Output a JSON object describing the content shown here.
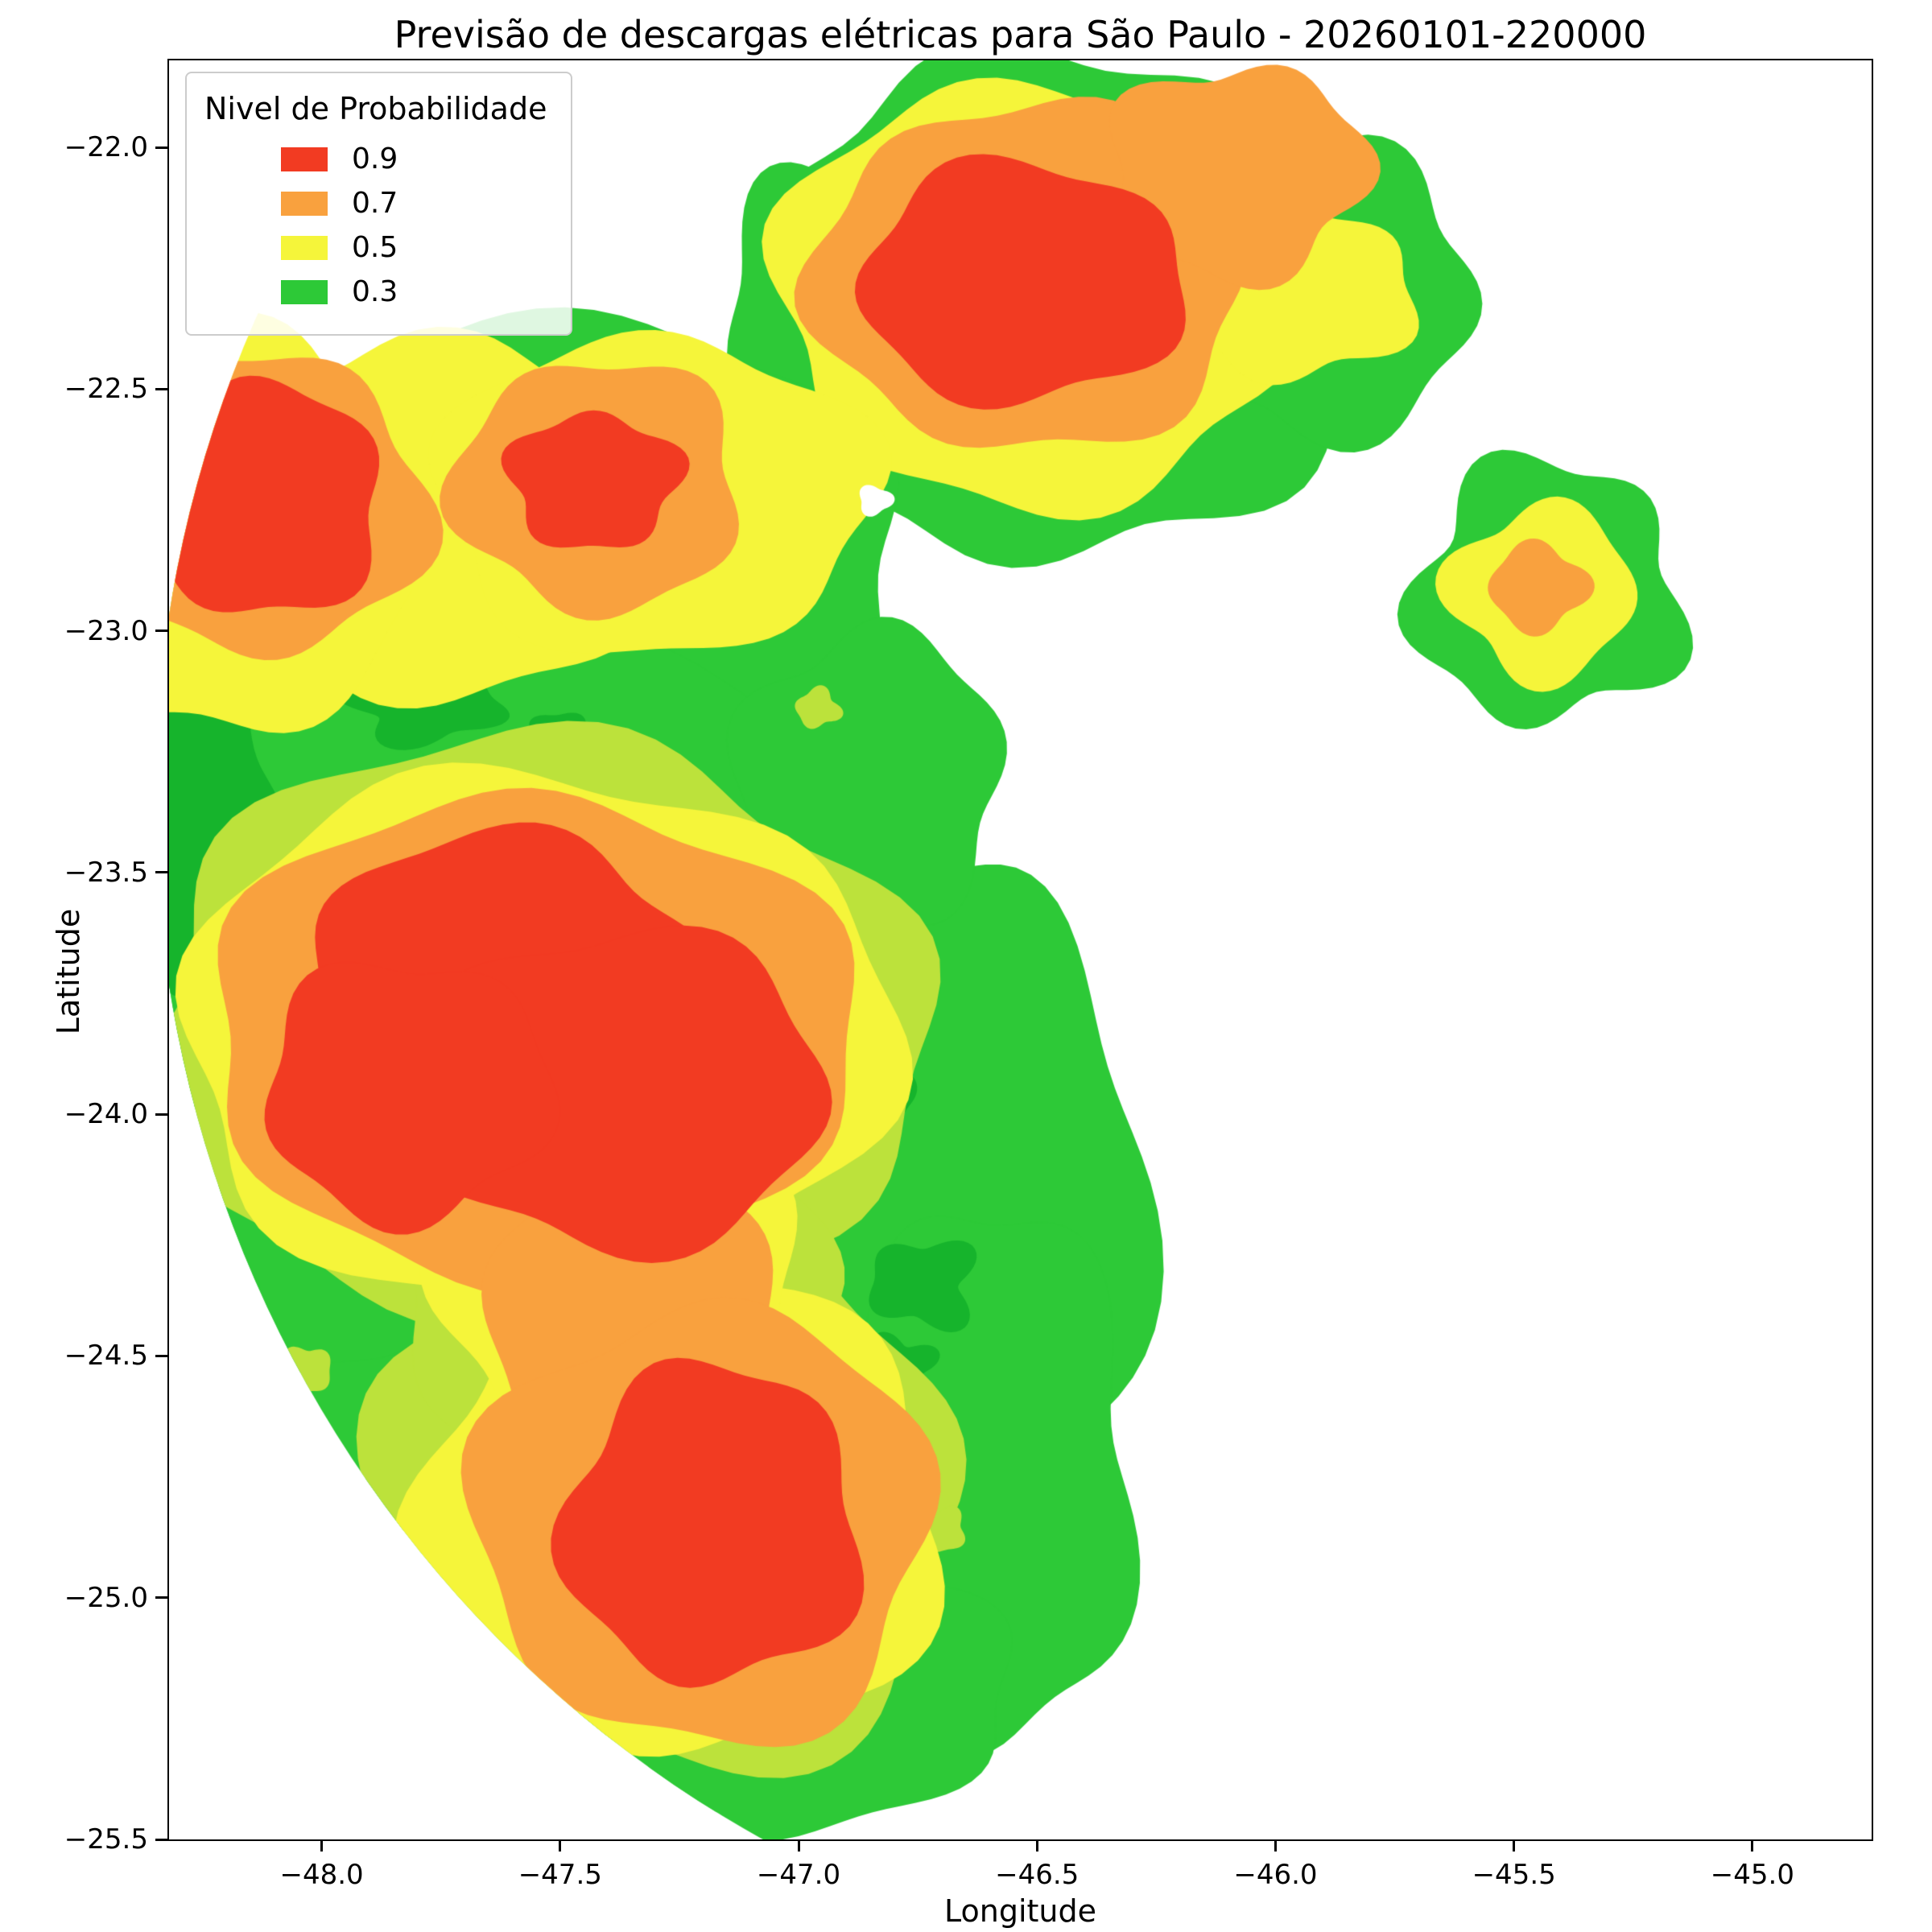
{
  "figure": {
    "title": "Previsão de descargas elétricas para São Paulo - 20260101-220000",
    "xlabel": "Longitude",
    "ylabel": "Latitude",
    "background": "#ffffff"
  },
  "legend": {
    "title": "Nivel de Probabilidade",
    "entries": [
      {
        "label": "0.9",
        "color": "#f23b22"
      },
      {
        "label": "0.7",
        "color": "#f9a13e"
      },
      {
        "label": "0.5",
        "color": "#f5f53a"
      },
      {
        "label": "0.3",
        "color": "#2dc937"
      }
    ]
  },
  "chart_data": {
    "type": "heatmap",
    "subtype": "filled-contour-probability-map",
    "title": "Previsão de descargas elétricas para São Paulo - 20260101-220000",
    "xlabel": "Longitude",
    "ylabel": "Latitude",
    "xlim": [
      -48.32,
      -44.75
    ],
    "ylim": [
      -25.5,
      -21.82
    ],
    "xticks": [
      -48.0,
      -47.5,
      -47.0,
      -46.5,
      -46.0,
      -45.5,
      -45.0
    ],
    "xtick_labels": [
      "−48.0",
      "−47.5",
      "−47.0",
      "−46.5",
      "−46.0",
      "−45.5",
      "−45.0"
    ],
    "yticks": [
      -22.0,
      -22.5,
      -23.0,
      -23.5,
      -24.0,
      -24.5,
      -25.0,
      -25.5
    ],
    "ytick_labels": [
      "−22.0",
      "−22.5",
      "−23.0",
      "−23.5",
      "−24.0",
      "−24.5",
      "−25.0",
      "−25.5"
    ],
    "grid": false,
    "legend_position": "upper left",
    "coverage_circle": {
      "cx": -45.9,
      "cy": -23.35,
      "r": 2.45
    },
    "levels": [
      {
        "label": "0.3",
        "value": 0.3,
        "color": "#2dc937",
        "blobs": [
          {
            "cx": -46.45,
            "cy": -22.33,
            "rx": 0.66,
            "ry": 0.52,
            "seed": 1,
            "wobble": 0.06,
            "freq": 7
          },
          {
            "cx": -45.92,
            "cy": -22.3,
            "rx": 0.34,
            "ry": 0.3,
            "seed": 2,
            "wobble": 0.1,
            "freq": 5
          },
          {
            "cx": -46.9,
            "cy": -22.35,
            "rx": 0.25,
            "ry": 0.33,
            "seed": 3,
            "wobble": 0.1,
            "freq": 5
          },
          {
            "cx": -45.43,
            "cy": -22.92,
            "rx": 0.28,
            "ry": 0.27,
            "seed": 4,
            "wobble": 0.12,
            "freq": 5
          },
          {
            "cx": -47.55,
            "cy": -22.85,
            "rx": 0.78,
            "ry": 0.5,
            "seed": 5,
            "wobble": 0.05,
            "freq": 6
          },
          {
            "cx": -47.6,
            "cy": -23.6,
            "rx": 0.92,
            "ry": 0.6,
            "seed": 6,
            "wobble": 0.05,
            "freq": 6
          },
          {
            "cx": -47.45,
            "cy": -24.3,
            "rx": 0.85,
            "ry": 0.6,
            "seed": 7,
            "wobble": 0.06,
            "freq": 6
          },
          {
            "cx": -47.25,
            "cy": -24.95,
            "rx": 0.72,
            "ry": 0.5,
            "seed": 8,
            "wobble": 0.07,
            "freq": 6
          },
          {
            "cx": -46.7,
            "cy": -24.2,
            "rx": 0.42,
            "ry": 0.75,
            "seed": 9,
            "wobble": 0.08,
            "freq": 5
          },
          {
            "cx": -46.62,
            "cy": -24.75,
            "rx": 0.33,
            "ry": 0.55,
            "seed": 10,
            "wobble": 0.09,
            "freq": 5
          },
          {
            "cx": -47.0,
            "cy": -25.2,
            "rx": 0.45,
            "ry": 0.28,
            "seed": 11,
            "wobble": 0.08,
            "freq": 5
          },
          {
            "cx": -48.05,
            "cy": -23.8,
            "rx": 0.4,
            "ry": 0.8,
            "seed": 12,
            "wobble": 0.06,
            "freq": 5
          },
          {
            "cx": -46.85,
            "cy": -23.3,
            "rx": 0.28,
            "ry": 0.3,
            "seed": 13,
            "wobble": 0.09,
            "freq": 5
          }
        ]
      },
      {
        "label": "",
        "color": "#16b42c",
        "blobs": [
          {
            "cx": -48.28,
            "cy": -23.4,
            "rx": 0.2,
            "ry": 0.33,
            "seed": 21,
            "wobble": 0.15,
            "freq": 4
          },
          {
            "cx": -47.78,
            "cy": -23.16,
            "rx": 0.16,
            "ry": 0.07,
            "seed": 22,
            "wobble": 0.2,
            "freq": 4
          },
          {
            "cx": -47.5,
            "cy": -23.22,
            "rx": 0.07,
            "ry": 0.05,
            "seed": 23,
            "wobble": 0.2,
            "freq": 4
          },
          {
            "cx": -46.74,
            "cy": -24.35,
            "rx": 0.11,
            "ry": 0.09,
            "seed": 24,
            "wobble": 0.2,
            "freq": 4
          },
          {
            "cx": -46.79,
            "cy": -24.52,
            "rx": 0.07,
            "ry": 0.06,
            "seed": 25,
            "wobble": 0.2,
            "freq": 4
          },
          {
            "cx": -46.82,
            "cy": -23.95,
            "rx": 0.06,
            "ry": 0.08,
            "seed": 26,
            "wobble": 0.2,
            "freq": 4
          }
        ]
      },
      {
        "label": "",
        "color": "#bce23b",
        "blobs": [
          {
            "cx": -47.55,
            "cy": -23.82,
            "rx": 0.82,
            "ry": 0.6,
            "seed": 31,
            "wobble": 0.06,
            "freq": 6
          },
          {
            "cx": -47.28,
            "cy": -24.8,
            "rx": 0.62,
            "ry": 0.56,
            "seed": 32,
            "wobble": 0.08,
            "freq": 5
          },
          {
            "cx": -47.4,
            "cy": -24.35,
            "rx": 0.45,
            "ry": 0.4,
            "seed": 33,
            "wobble": 0.08,
            "freq": 5
          },
          {
            "cx": -46.96,
            "cy": -23.16,
            "rx": 0.045,
            "ry": 0.04,
            "seed": 34,
            "wobble": 0.15,
            "freq": 4
          },
          {
            "cx": -46.7,
            "cy": -24.86,
            "rx": 0.05,
            "ry": 0.045,
            "seed": 35,
            "wobble": 0.15,
            "freq": 4
          },
          {
            "cx": -48.03,
            "cy": -24.53,
            "rx": 0.05,
            "ry": 0.05,
            "seed": 36,
            "wobble": 0.15,
            "freq": 4
          }
        ]
      },
      {
        "label": "0.5",
        "value": 0.5,
        "color": "#f5f53a",
        "blobs": [
          {
            "cx": -46.5,
            "cy": -22.3,
            "rx": 0.55,
            "ry": 0.44,
            "seed": 41,
            "wobble": 0.06,
            "freq": 6
          },
          {
            "cx": -45.95,
            "cy": -22.3,
            "rx": 0.24,
            "ry": 0.18,
            "seed": 42,
            "wobble": 0.1,
            "freq": 5
          },
          {
            "cx": -47.8,
            "cy": -22.77,
            "rx": 0.52,
            "ry": 0.37,
            "seed": 43,
            "wobble": 0.07,
            "freq": 6
          },
          {
            "cx": -47.3,
            "cy": -22.72,
            "rx": 0.46,
            "ry": 0.33,
            "seed": 44,
            "wobble": 0.07,
            "freq": 5
          },
          {
            "cx": -48.2,
            "cy": -22.8,
            "rx": 0.4,
            "ry": 0.42,
            "seed": 45,
            "wobble": 0.07,
            "freq": 5
          },
          {
            "cx": -45.44,
            "cy": -22.92,
            "rx": 0.19,
            "ry": 0.18,
            "seed": 46,
            "wobble": 0.12,
            "freq": 4
          },
          {
            "cx": -47.55,
            "cy": -23.84,
            "rx": 0.75,
            "ry": 0.55,
            "seed": 47,
            "wobble": 0.05,
            "freq": 6
          },
          {
            "cx": -47.25,
            "cy": -24.82,
            "rx": 0.55,
            "ry": 0.5,
            "seed": 48,
            "wobble": 0.07,
            "freq": 5
          },
          {
            "cx": -47.38,
            "cy": -24.35,
            "rx": 0.38,
            "ry": 0.36,
            "seed": 49,
            "wobble": 0.07,
            "freq": 5
          }
        ]
      },
      {
        "label": "0.7",
        "value": 0.7,
        "color": "#f9a13e",
        "blobs": [
          {
            "cx": -46.52,
            "cy": -22.27,
            "rx": 0.45,
            "ry": 0.36,
            "seed": 51,
            "wobble": 0.06,
            "freq": 6
          },
          {
            "cx": -46.08,
            "cy": -22.05,
            "rx": 0.27,
            "ry": 0.22,
            "seed": 52,
            "wobble": 0.1,
            "freq": 5
          },
          {
            "cx": -48.12,
            "cy": -22.74,
            "rx": 0.34,
            "ry": 0.31,
            "seed": 53,
            "wobble": 0.08,
            "freq": 5
          },
          {
            "cx": -47.42,
            "cy": -22.7,
            "rx": 0.3,
            "ry": 0.26,
            "seed": 54,
            "wobble": 0.08,
            "freq": 5
          },
          {
            "cx": -47.56,
            "cy": -23.84,
            "rx": 0.68,
            "ry": 0.5,
            "seed": 55,
            "wobble": 0.05,
            "freq": 6
          },
          {
            "cx": -47.35,
            "cy": -24.4,
            "rx": 0.3,
            "ry": 0.34,
            "seed": 56,
            "wobble": 0.08,
            "freq": 5
          },
          {
            "cx": -47.2,
            "cy": -24.85,
            "rx": 0.48,
            "ry": 0.45,
            "seed": 57,
            "wobble": 0.07,
            "freq": 5
          },
          {
            "cx": -45.45,
            "cy": -22.91,
            "rx": 0.1,
            "ry": 0.09,
            "seed": 58,
            "wobble": 0.12,
            "freq": 4
          }
        ]
      },
      {
        "label": "0.9",
        "value": 0.9,
        "color": "#f23b22",
        "blobs": [
          {
            "cx": -46.53,
            "cy": -22.28,
            "rx": 0.34,
            "ry": 0.25,
            "seed": 61,
            "wobble": 0.07,
            "freq": 5
          },
          {
            "cx": -48.13,
            "cy": -22.73,
            "rx": 0.26,
            "ry": 0.24,
            "seed": 62,
            "wobble": 0.08,
            "freq": 5
          },
          {
            "cx": -47.43,
            "cy": -22.69,
            "rx": 0.18,
            "ry": 0.14,
            "seed": 63,
            "wobble": 0.1,
            "freq": 5
          },
          {
            "cx": -47.62,
            "cy": -23.72,
            "rx": 0.42,
            "ry": 0.3,
            "seed": 64,
            "wobble": 0.07,
            "freq": 5
          },
          {
            "cx": -47.38,
            "cy": -23.95,
            "rx": 0.44,
            "ry": 0.33,
            "seed": 65,
            "wobble": 0.07,
            "freq": 5
          },
          {
            "cx": -47.82,
            "cy": -23.95,
            "rx": 0.3,
            "ry": 0.27,
            "seed": 66,
            "wobble": 0.08,
            "freq": 5
          },
          {
            "cx": -47.18,
            "cy": -24.85,
            "rx": 0.31,
            "ry": 0.33,
            "seed": 67,
            "wobble": 0.08,
            "freq": 5
          }
        ]
      },
      {
        "label": "",
        "color": "#ffffff",
        "blobs": [
          {
            "cx": -46.84,
            "cy": -22.73,
            "rx": 0.035,
            "ry": 0.03,
            "seed": 71,
            "wobble": 0.2,
            "freq": 3
          }
        ]
      }
    ]
  }
}
